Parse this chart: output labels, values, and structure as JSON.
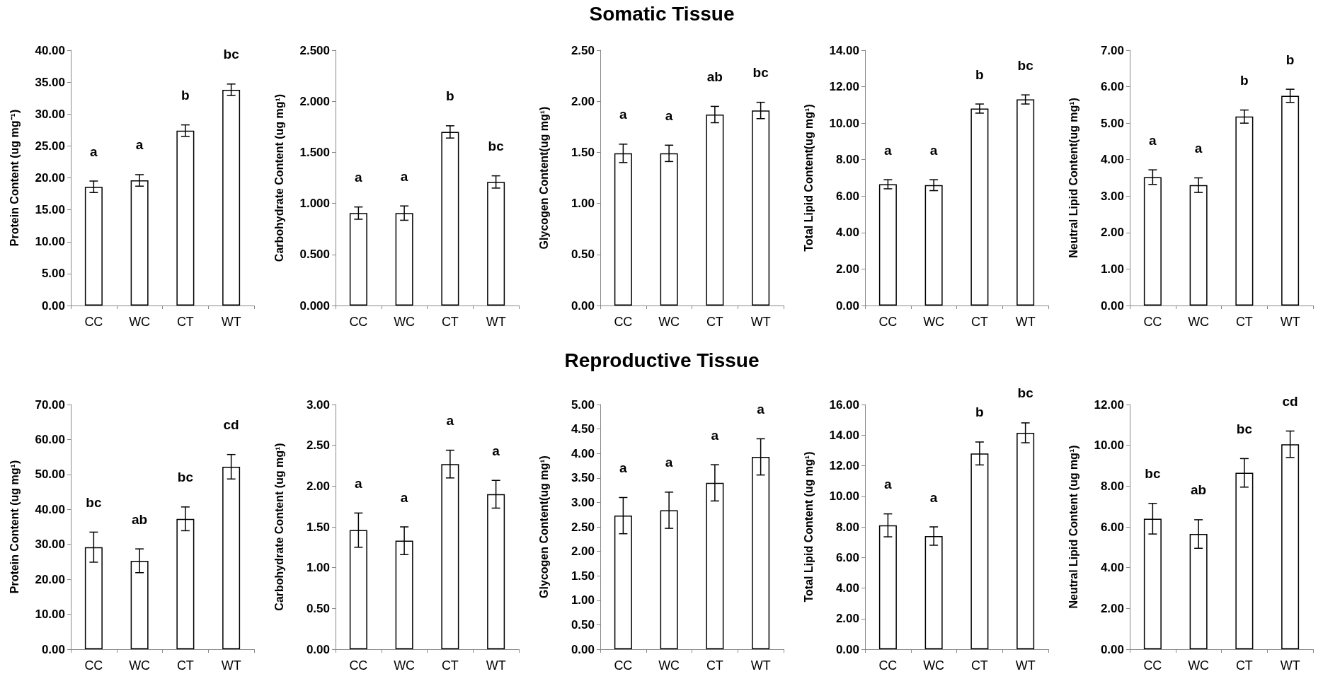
{
  "chart_data": [
    {
      "type": "bar",
      "ylabel": "Protein Content (ug mg⁻¹)",
      "categories": [
        "CC",
        "WC",
        "CT",
        "WT"
      ],
      "values": [
        18.6,
        19.6,
        27.4,
        33.8
      ],
      "errors": [
        0.9,
        0.9,
        0.9,
        0.9
      ],
      "color": "#ffffff",
      "ylim": [
        0,
        40
      ],
      "yticks": [
        {
          "value": 0,
          "label": "0.00"
        },
        {
          "value": 5,
          "label": "5.00"
        },
        {
          "value": 10,
          "label": "10.00"
        },
        {
          "value": 15,
          "label": "15.00"
        },
        {
          "value": 20,
          "label": "20.00"
        },
        {
          "value": 25,
          "label": "25.00"
        },
        {
          "value": 30,
          "label": "30.00"
        },
        {
          "value": 35,
          "label": "35.00"
        },
        {
          "value": 40,
          "label": "40.00"
        }
      ],
      "annotations": [
        "a",
        "a",
        "b",
        "bc"
      ]
    },
    {
      "type": "bar",
      "ylabel": "Carbohydrate Content (ug mg¹)",
      "categories": [
        "CC",
        "WC",
        "CT",
        "WT"
      ],
      "values": [
        0.905,
        0.905,
        1.7,
        1.21
      ],
      "errors": [
        0.06,
        0.07,
        0.06,
        0.06
      ],
      "color": "#ffffff",
      "ylim": [
        0,
        2.5
      ],
      "yticks": [
        {
          "value": 0,
          "label": "0.000"
        },
        {
          "value": 0.5,
          "label": "0.500"
        },
        {
          "value": 1,
          "label": "1.000"
        },
        {
          "value": 1.5,
          "label": "1.500"
        },
        {
          "value": 2,
          "label": "2.000"
        },
        {
          "value": 2.5,
          "label": "2.500"
        }
      ],
      "annotations": [
        "a",
        "a",
        "b",
        "bc"
      ]
    },
    {
      "type": "bar",
      "title": "Somatic Tissue",
      "ylabel": "Glycogen Content(ug mg¹)",
      "categories": [
        "CC",
        "WC",
        "CT",
        "WT"
      ],
      "values": [
        1.49,
        1.49,
        1.87,
        1.91
      ],
      "errors": [
        0.09,
        0.08,
        0.08,
        0.08
      ],
      "color": "#ffffff",
      "ylim": [
        0,
        2.5
      ],
      "yticks": [
        {
          "value": 0,
          "label": "0.00"
        },
        {
          "value": 0.5,
          "label": "0.50"
        },
        {
          "value": 1,
          "label": "1.00"
        },
        {
          "value": 1.5,
          "label": "1.50"
        },
        {
          "value": 2,
          "label": "2.00"
        },
        {
          "value": 2.5,
          "label": "2.50"
        }
      ],
      "annotations": [
        "a",
        "a",
        "ab",
        "bc"
      ]
    },
    {
      "type": "bar",
      "ylabel": "Total Lipid Content(ug mg¹)",
      "categories": [
        "CC",
        "WC",
        "CT",
        "WT"
      ],
      "values": [
        6.65,
        6.6,
        10.8,
        11.3
      ],
      "errors": [
        0.25,
        0.3,
        0.25,
        0.25
      ],
      "color": "#ffffff",
      "ylim": [
        0,
        14
      ],
      "yticks": [
        {
          "value": 0,
          "label": "0.00"
        },
        {
          "value": 2,
          "label": "2.00"
        },
        {
          "value": 4,
          "label": "4.00"
        },
        {
          "value": 6,
          "label": "6.00"
        },
        {
          "value": 8,
          "label": "8.00"
        },
        {
          "value": 10,
          "label": "10.00"
        },
        {
          "value": 12,
          "label": "12.00"
        },
        {
          "value": 14,
          "label": "14.00"
        }
      ],
      "annotations": [
        "a",
        "a",
        "b",
        "bc"
      ]
    },
    {
      "type": "bar",
      "ylabel": "Neutral Lipid Content(ug mg¹)",
      "categories": [
        "CC",
        "WC",
        "CT",
        "WT"
      ],
      "values": [
        3.52,
        3.3,
        5.18,
        5.75
      ],
      "errors": [
        0.2,
        0.2,
        0.18,
        0.18
      ],
      "color": "#ffffff",
      "ylim": [
        0,
        7
      ],
      "yticks": [
        {
          "value": 0,
          "label": "0.00"
        },
        {
          "value": 1,
          "label": "1.00"
        },
        {
          "value": 2,
          "label": "2.00"
        },
        {
          "value": 3,
          "label": "3.00"
        },
        {
          "value": 4,
          "label": "4.00"
        },
        {
          "value": 5,
          "label": "5.00"
        },
        {
          "value": 6,
          "label": "6.00"
        },
        {
          "value": 7,
          "label": "7.00"
        }
      ],
      "annotations": [
        "a",
        "a",
        "b",
        "b"
      ]
    },
    {
      "type": "bar",
      "ylabel": "Protein Content (ug mg¹)",
      "categories": [
        "CC",
        "WC",
        "CT",
        "WT"
      ],
      "values": [
        29.2,
        25.3,
        37.3,
        52.2
      ],
      "errors": [
        4.3,
        3.4,
        3.4,
        3.5
      ],
      "color": "#ffffff",
      "ylim": [
        0,
        70
      ],
      "yticks": [
        {
          "value": 0,
          "label": "0.00"
        },
        {
          "value": 10,
          "label": "10.00"
        },
        {
          "value": 20,
          "label": "20.00"
        },
        {
          "value": 30,
          "label": "30.00"
        },
        {
          "value": 40,
          "label": "40.00"
        },
        {
          "value": 50,
          "label": "50.00"
        },
        {
          "value": 60,
          "label": "60.00"
        },
        {
          "value": 70,
          "label": "70.00"
        }
      ],
      "annotations": [
        "bc",
        "ab",
        "bc",
        "cd"
      ]
    },
    {
      "type": "bar",
      "ylabel": "Carbohydrate Content (ug mg¹)",
      "categories": [
        "CC",
        "WC",
        "CT",
        "WT"
      ],
      "values": [
        1.46,
        1.33,
        2.27,
        1.9
      ],
      "errors": [
        0.21,
        0.17,
        0.17,
        0.17
      ],
      "color": "#ffffff",
      "ylim": [
        0,
        3
      ],
      "yticks": [
        {
          "value": 0,
          "label": "0.00"
        },
        {
          "value": 0.5,
          "label": "0.50"
        },
        {
          "value": 1,
          "label": "1.00"
        },
        {
          "value": 1.5,
          "label": "1.50"
        },
        {
          "value": 2,
          "label": "2.00"
        },
        {
          "value": 2.5,
          "label": "2.50"
        },
        {
          "value": 3,
          "label": "3.00"
        }
      ],
      "annotations": [
        "a",
        "a",
        "a",
        "a"
      ]
    },
    {
      "type": "bar",
      "title": "Reproductive Tissue",
      "ylabel": "Glycogen Content(ug mg¹)",
      "categories": [
        "CC",
        "WC",
        "CT",
        "WT"
      ],
      "values": [
        2.73,
        2.84,
        3.4,
        3.93
      ],
      "errors": [
        0.37,
        0.37,
        0.37,
        0.37
      ],
      "color": "#ffffff",
      "ylim": [
        0,
        5
      ],
      "yticks": [
        {
          "value": 0,
          "label": "0.00"
        },
        {
          "value": 0.5,
          "label": "0.50"
        },
        {
          "value": 1,
          "label": "1.00"
        },
        {
          "value": 1.5,
          "label": "1.50"
        },
        {
          "value": 2,
          "label": "2.00"
        },
        {
          "value": 2.5,
          "label": "2.50"
        },
        {
          "value": 3,
          "label": "3.00"
        },
        {
          "value": 3.5,
          "label": "3.50"
        },
        {
          "value": 4,
          "label": "4.00"
        },
        {
          "value": 4.5,
          "label": "4.50"
        },
        {
          "value": 5,
          "label": "5.00"
        }
      ],
      "annotations": [
        "a",
        "a",
        "a",
        "a"
      ]
    },
    {
      "type": "bar",
      "ylabel": "Total Lipid Content (ug mg¹)",
      "categories": [
        "CC",
        "WC",
        "CT",
        "WT"
      ],
      "values": [
        8.1,
        7.4,
        12.8,
        14.15
      ],
      "errors": [
        0.75,
        0.6,
        0.75,
        0.65
      ],
      "color": "#ffffff",
      "ylim": [
        0,
        16
      ],
      "yticks": [
        {
          "value": 0,
          "label": "0.00"
        },
        {
          "value": 2,
          "label": "2.00"
        },
        {
          "value": 4,
          "label": "4.00"
        },
        {
          "value": 6,
          "label": "6.00"
        },
        {
          "value": 8,
          "label": "8.00"
        },
        {
          "value": 10,
          "label": "10.00"
        },
        {
          "value": 12,
          "label": "12.00"
        },
        {
          "value": 14,
          "label": "14.00"
        },
        {
          "value": 16,
          "label": "16.00"
        }
      ],
      "annotations": [
        "a",
        "a",
        "b",
        "bc"
      ]
    },
    {
      "type": "bar",
      "ylabel": "Neutral Lipid Content (ug mg¹)",
      "categories": [
        "CC",
        "WC",
        "CT",
        "WT"
      ],
      "values": [
        6.4,
        5.65,
        8.65,
        10.05
      ],
      "errors": [
        0.75,
        0.7,
        0.7,
        0.65
      ],
      "color": "#ffffff",
      "ylim": [
        0,
        12
      ],
      "yticks": [
        {
          "value": 0,
          "label": "0.00"
        },
        {
          "value": 2,
          "label": "2.00"
        },
        {
          "value": 4,
          "label": "4.00"
        },
        {
          "value": 6,
          "label": "6.00"
        },
        {
          "value": 8,
          "label": "8.00"
        },
        {
          "value": 10,
          "label": "10.00"
        },
        {
          "value": 12,
          "label": "12.00"
        }
      ],
      "annotations": [
        "bc",
        "ab",
        "bc",
        "cd"
      ]
    }
  ]
}
